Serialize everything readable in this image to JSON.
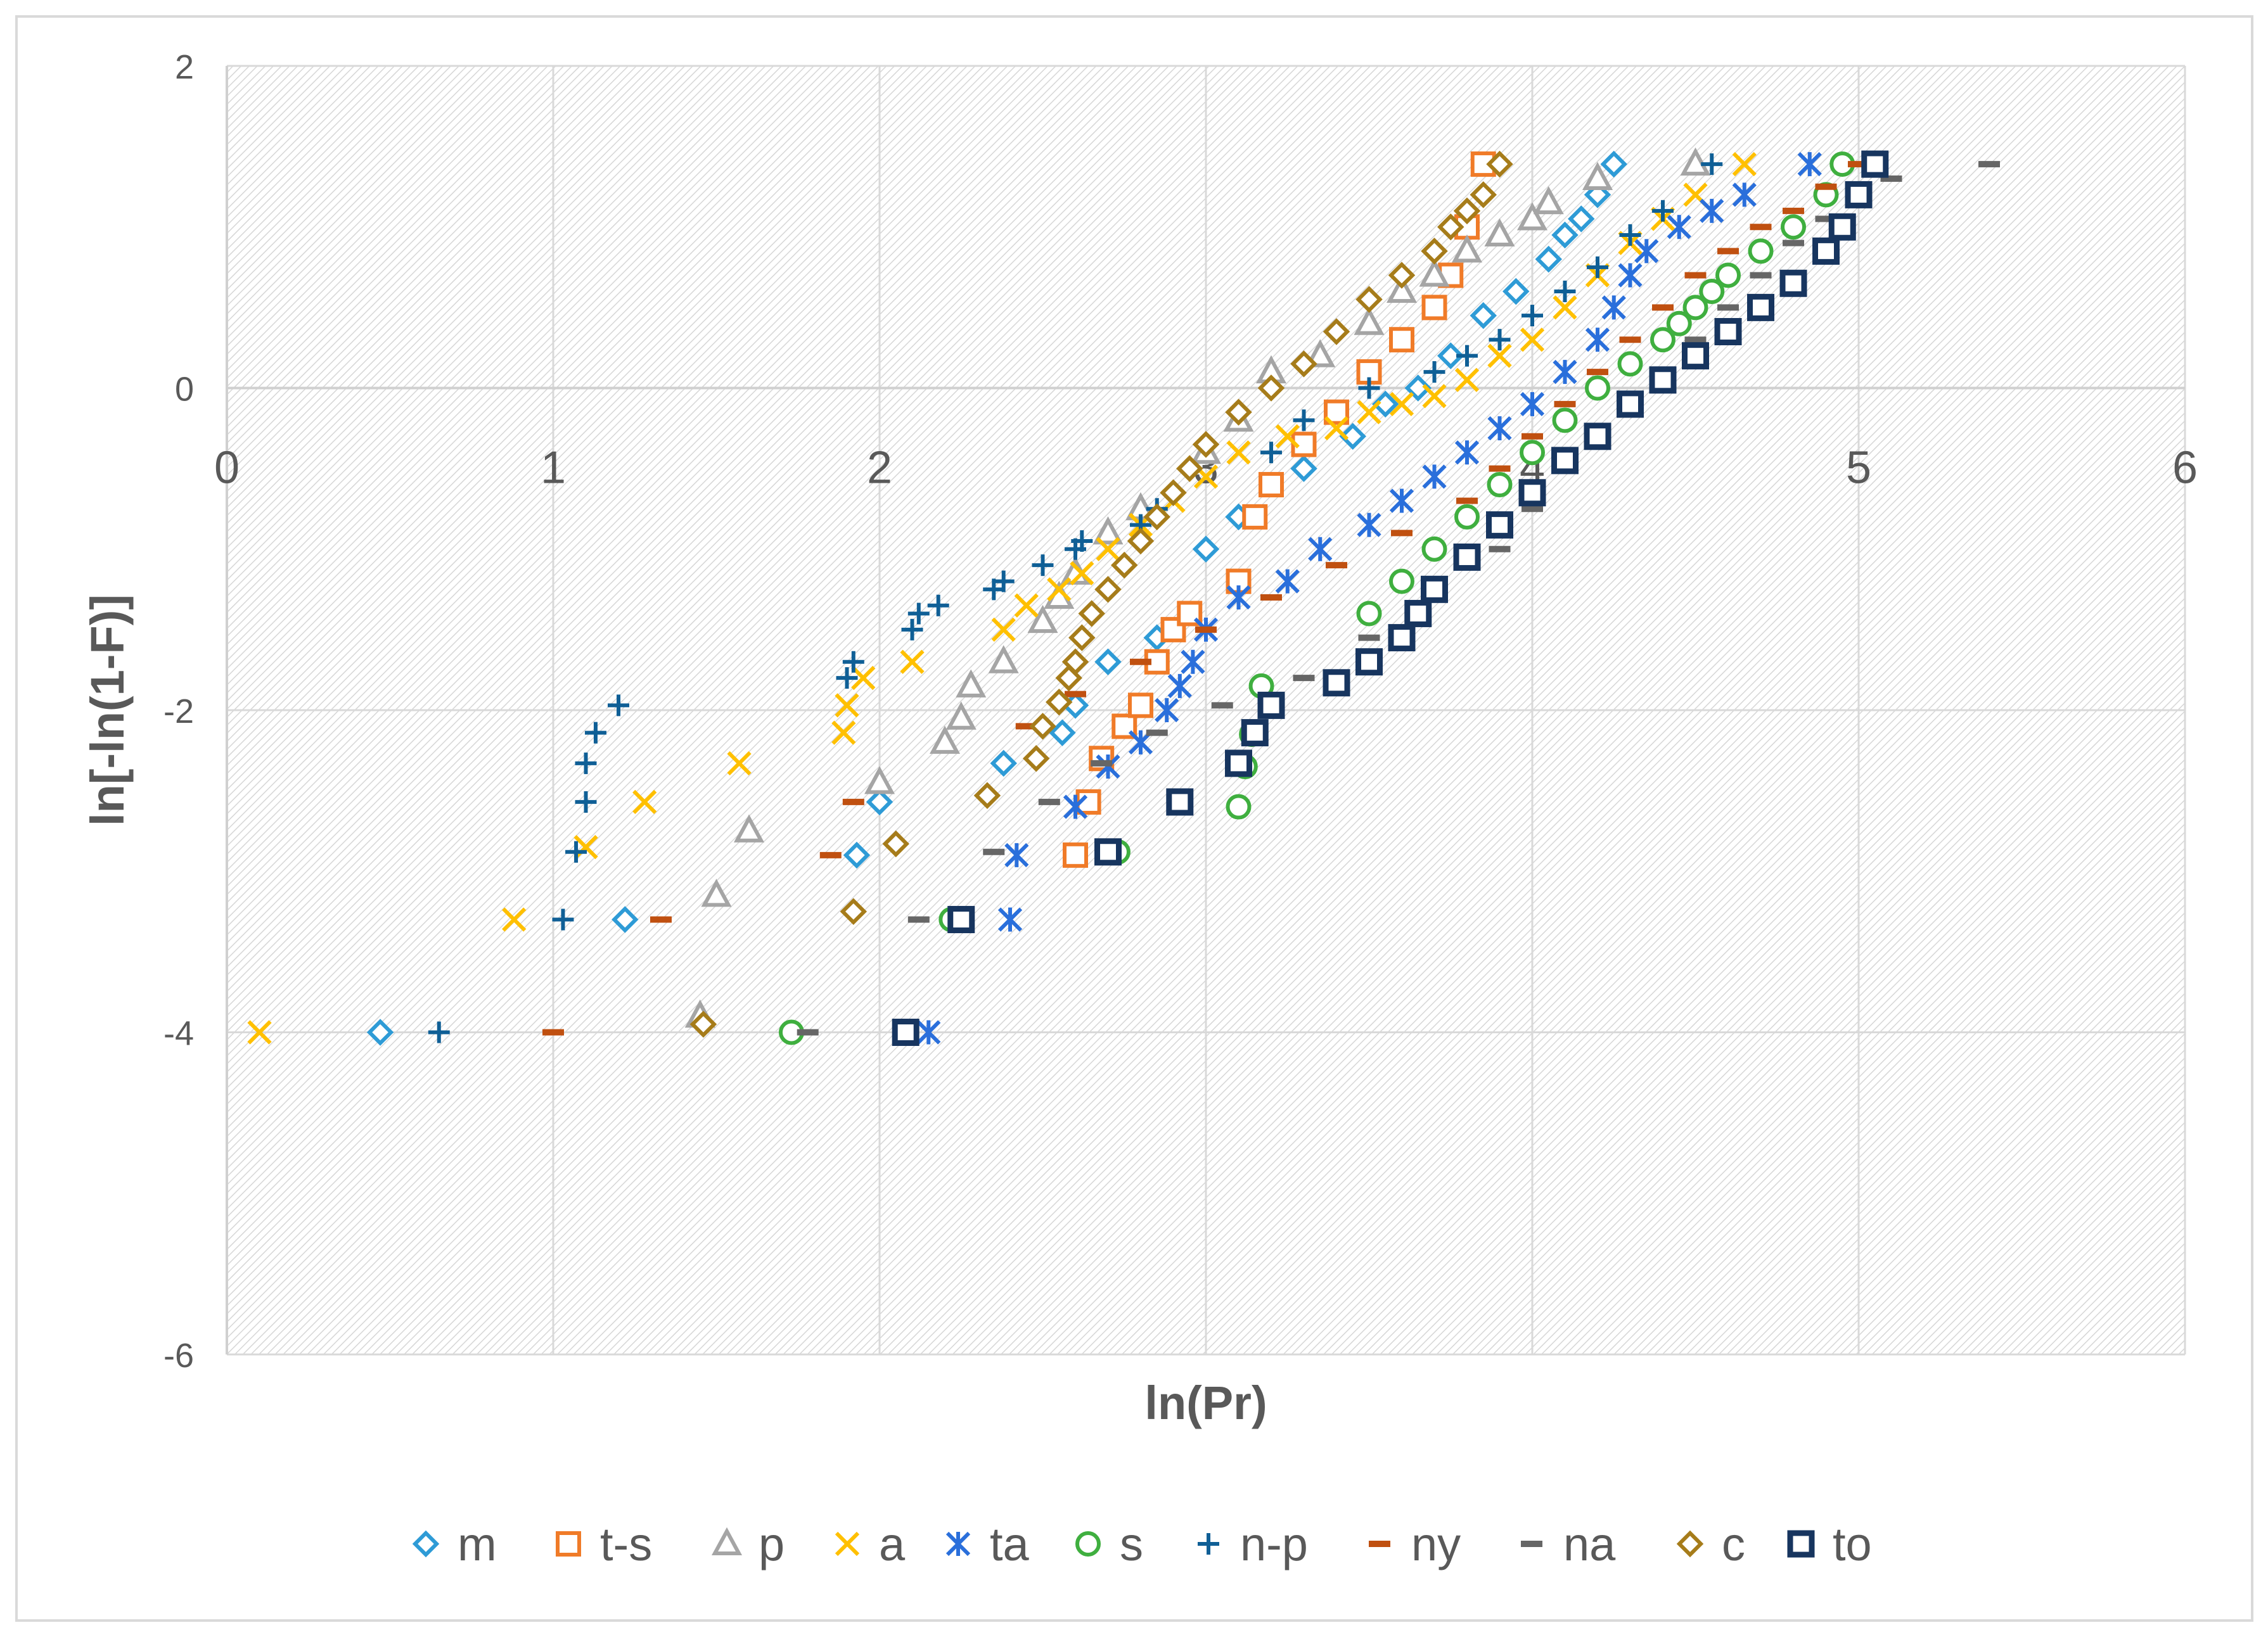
{
  "chart_data": {
    "type": "scatter",
    "title": "",
    "xlabel": "ln(Pr)",
    "ylabel": "ln[-ln(1-F)]",
    "xlim": [
      0,
      6
    ],
    "ylim": [
      -6,
      2
    ],
    "xticks": [
      0,
      1,
      2,
      3,
      4,
      5,
      6
    ],
    "yticks": [
      -6,
      -4,
      -2,
      0,
      2
    ],
    "xtick_labels": [
      "0",
      "1",
      "2",
      "3",
      "4",
      "5",
      "6"
    ],
    "ytick_labels": [
      "-6",
      "-4",
      "-2",
      "0",
      "2"
    ],
    "grid": true,
    "legend_position": "bottom",
    "series": [
      {
        "name": "m",
        "marker": "diamond",
        "color": "#2E9BD6",
        "x": [
          0.47,
          1.22,
          1.93,
          2.0,
          2.38,
          2.56,
          2.6,
          2.7,
          2.85,
          3.0,
          3.1,
          3.3,
          3.45,
          3.55,
          3.65,
          3.75,
          3.85,
          3.95,
          4.05,
          4.1,
          4.15,
          4.2,
          4.25
        ],
        "y": [
          -4.0,
          -3.3,
          -2.9,
          -2.57,
          -2.33,
          -2.14,
          -1.97,
          -1.7,
          -1.55,
          -1.0,
          -0.8,
          -0.5,
          -0.3,
          -0.1,
          0.0,
          0.2,
          0.45,
          0.6,
          0.8,
          0.95,
          1.05,
          1.2,
          1.39
        ]
      },
      {
        "name": "t-s",
        "marker": "square",
        "color": "#F07B28",
        "x": [
          2.6,
          2.64,
          2.68,
          2.75,
          2.8,
          2.85,
          2.9,
          2.95,
          3.1,
          3.15,
          3.2,
          3.3,
          3.4,
          3.5,
          3.6,
          3.7,
          3.75,
          3.8,
          3.85
        ],
        "y": [
          -2.9,
          -2.57,
          -2.3,
          -2.1,
          -1.97,
          -1.7,
          -1.5,
          -1.4,
          -1.2,
          -0.8,
          -0.6,
          -0.35,
          -0.15,
          0.1,
          0.3,
          0.5,
          0.7,
          1.0,
          1.39
        ]
      },
      {
        "name": "p",
        "marker": "triangle",
        "color": "#A5A5A5",
        "x": [
          1.45,
          1.5,
          1.6,
          2.0,
          2.2,
          2.25,
          2.28,
          2.38,
          2.5,
          2.55,
          2.6,
          2.7,
          2.8,
          3.0,
          3.1,
          3.2,
          3.35,
          3.5,
          3.6,
          3.7,
          3.8,
          3.9,
          4.0,
          4.05,
          4.2,
          4.5
        ],
        "y": [
          -3.9,
          -3.15,
          -2.75,
          -2.45,
          -2.2,
          -2.05,
          -1.85,
          -1.7,
          -1.45,
          -1.3,
          -1.15,
          -0.9,
          -0.75,
          -0.4,
          -0.2,
          0.1,
          0.2,
          0.4,
          0.6,
          0.7,
          0.85,
          0.95,
          1.05,
          1.15,
          1.3,
          1.39
        ]
      },
      {
        "name": "a",
        "marker": "x",
        "color": "#FFC000",
        "x": [
          0.1,
          0.88,
          1.1,
          1.28,
          1.57,
          1.89,
          1.9,
          1.95,
          2.1,
          2.38,
          2.45,
          2.55,
          2.62,
          2.7,
          2.8,
          2.9,
          3.0,
          3.1,
          3.25,
          3.4,
          3.5,
          3.6,
          3.7,
          3.8,
          3.9,
          4.0,
          4.1,
          4.2,
          4.3,
          4.4,
          4.5,
          4.65
        ],
        "y": [
          -4.0,
          -3.3,
          -2.85,
          -2.57,
          -2.33,
          -2.14,
          -1.97,
          -1.8,
          -1.7,
          -1.5,
          -1.35,
          -1.25,
          -1.15,
          -1.0,
          -0.85,
          -0.7,
          -0.55,
          -0.4,
          -0.3,
          -0.25,
          -0.15,
          -0.1,
          -0.05,
          0.05,
          0.2,
          0.3,
          0.5,
          0.7,
          0.9,
          1.05,
          1.2,
          1.39
        ]
      },
      {
        "name": "ta",
        "marker": "asterisk",
        "color": "#2A6FDB",
        "x": [
          2.15,
          2.4,
          2.42,
          2.6,
          2.7,
          2.8,
          2.88,
          2.92,
          2.96,
          3.0,
          3.1,
          3.25,
          3.35,
          3.5,
          3.6,
          3.7,
          3.8,
          3.9,
          4.0,
          4.1,
          4.2,
          4.25,
          4.3,
          4.35,
          4.45,
          4.55,
          4.65,
          4.85
        ],
        "y": [
          -4.0,
          -3.3,
          -2.9,
          -2.6,
          -2.35,
          -2.2,
          -2.0,
          -1.85,
          -1.7,
          -1.5,
          -1.3,
          -1.2,
          -1.0,
          -0.85,
          -0.7,
          -0.55,
          -0.4,
          -0.25,
          -0.1,
          0.1,
          0.3,
          0.5,
          0.7,
          0.85,
          1.0,
          1.1,
          1.2,
          1.39
        ]
      },
      {
        "name": "s",
        "marker": "circle",
        "color": "#3FAF3F",
        "x": [
          1.73,
          2.22,
          2.73,
          3.1,
          3.12,
          3.14,
          3.17,
          3.5,
          3.6,
          3.7,
          3.8,
          3.9,
          4.0,
          4.1,
          4.2,
          4.3,
          4.4,
          4.45,
          4.5,
          4.55,
          4.6,
          4.7,
          4.8,
          4.9,
          4.95
        ],
        "y": [
          -4.0,
          -3.3,
          -2.88,
          -2.6,
          -2.35,
          -2.15,
          -1.85,
          -1.4,
          -1.2,
          -1.0,
          -0.8,
          -0.6,
          -0.4,
          -0.2,
          0.0,
          0.15,
          0.3,
          0.4,
          0.5,
          0.6,
          0.7,
          0.85,
          1.0,
          1.2,
          1.39
        ]
      },
      {
        "name": "n-p",
        "marker": "plus",
        "color": "#0F5F96",
        "x": [
          0.65,
          1.03,
          1.07,
          1.1,
          1.1,
          1.13,
          1.2,
          1.9,
          1.92,
          2.1,
          2.12,
          2.18,
          2.35,
          2.38,
          2.5,
          2.6,
          2.62,
          2.8,
          2.85,
          2.9,
          3.2,
          3.3,
          3.5,
          3.7,
          3.8,
          3.9,
          4.0,
          4.1,
          4.2,
          4.3,
          4.4,
          4.55
        ],
        "y": [
          -4.0,
          -3.3,
          -2.88,
          -2.57,
          -2.33,
          -2.14,
          -1.97,
          -1.8,
          -1.7,
          -1.5,
          -1.4,
          -1.35,
          -1.25,
          -1.2,
          -1.1,
          -1.0,
          -0.95,
          -0.85,
          -0.75,
          -0.65,
          -0.4,
          -0.2,
          0.0,
          0.1,
          0.2,
          0.3,
          0.45,
          0.6,
          0.75,
          0.95,
          1.1,
          1.39
        ]
      },
      {
        "name": "ny",
        "marker": "dash",
        "color": "#C05010",
        "x": [
          1.0,
          1.33,
          1.85,
          1.92,
          2.45,
          2.6,
          2.8,
          3.0,
          3.2,
          3.4,
          3.6,
          3.8,
          3.9,
          4.0,
          4.1,
          4.2,
          4.3,
          4.4,
          4.5,
          4.6,
          4.7,
          4.8,
          4.9,
          5.0
        ],
        "y": [
          -4.0,
          -3.3,
          -2.9,
          -2.57,
          -2.1,
          -1.9,
          -1.7,
          -1.5,
          -1.3,
          -1.1,
          -0.9,
          -0.7,
          -0.5,
          -0.3,
          -0.1,
          0.1,
          0.3,
          0.5,
          0.7,
          0.85,
          1.0,
          1.1,
          1.25,
          1.39
        ]
      },
      {
        "name": "na",
        "marker": "dash",
        "color": "#666666",
        "x": [
          1.78,
          2.12,
          2.35,
          2.52,
          2.68,
          2.85,
          3.05,
          3.3,
          3.5,
          3.7,
          3.9,
          4.0,
          4.1,
          4.2,
          4.3,
          4.4,
          4.5,
          4.6,
          4.7,
          4.8,
          4.9,
          5.0,
          5.1,
          5.4
        ],
        "y": [
          -4.0,
          -3.3,
          -2.88,
          -2.57,
          -2.33,
          -2.14,
          -1.97,
          -1.8,
          -1.55,
          -1.3,
          -1.0,
          -0.75,
          -0.5,
          -0.3,
          -0.1,
          0.1,
          0.3,
          0.5,
          0.7,
          0.9,
          1.05,
          1.2,
          1.3,
          1.39
        ]
      },
      {
        "name": "c",
        "marker": "diamond",
        "color": "#A67C1A",
        "x": [
          1.46,
          1.92,
          2.05,
          2.33,
          2.48,
          2.5,
          2.55,
          2.58,
          2.6,
          2.62,
          2.65,
          2.7,
          2.75,
          2.8,
          2.85,
          2.9,
          2.95,
          3.0,
          3.1,
          3.2,
          3.3,
          3.4,
          3.5,
          3.6,
          3.7,
          3.75,
          3.8,
          3.85,
          3.9
        ],
        "y": [
          -3.95,
          -3.25,
          -2.83,
          -2.53,
          -2.3,
          -2.1,
          -1.95,
          -1.8,
          -1.7,
          -1.55,
          -1.4,
          -1.25,
          -1.1,
          -0.95,
          -0.8,
          -0.65,
          -0.5,
          -0.35,
          -0.15,
          0.0,
          0.15,
          0.35,
          0.55,
          0.7,
          0.85,
          1.0,
          1.1,
          1.2,
          1.39
        ]
      },
      {
        "name": "to",
        "marker": "square-bold",
        "color": "#17355F",
        "x": [
          2.08,
          2.25,
          2.7,
          2.92,
          3.1,
          3.15,
          3.2,
          3.4,
          3.5,
          3.6,
          3.65,
          3.7,
          3.8,
          3.9,
          4.0,
          4.1,
          4.2,
          4.3,
          4.4,
          4.5,
          4.6,
          4.7,
          4.8,
          4.9,
          4.95,
          5.0,
          5.05
        ],
        "y": [
          -4.0,
          -3.3,
          -2.88,
          -2.57,
          -2.33,
          -2.14,
          -1.97,
          -1.83,
          -1.7,
          -1.55,
          -1.4,
          -1.25,
          -1.05,
          -0.85,
          -0.65,
          -0.45,
          -0.3,
          -0.1,
          0.05,
          0.2,
          0.35,
          0.5,
          0.65,
          0.85,
          1.0,
          1.2,
          1.39
        ]
      }
    ]
  }
}
